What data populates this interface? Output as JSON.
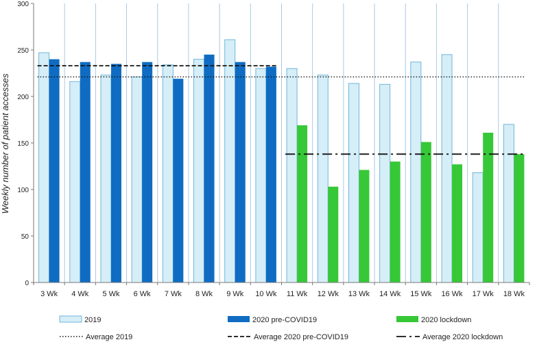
{
  "chart_data": {
    "type": "bar",
    "title": "",
    "xlabel": "",
    "ylabel": "Weekly number of patient accesses",
    "ylim": [
      0,
      300
    ],
    "yticks": [
      0,
      50,
      100,
      150,
      200,
      250,
      300
    ],
    "grid": "vertical lines between categories",
    "legend_position": "bottom",
    "categories": [
      "3 Wk",
      "4 Wk",
      "5 Wk",
      "6 Wk",
      "7 Wk",
      "8 Wk",
      "9 Wk",
      "10 Wk",
      "11 Wk",
      "12 Wk",
      "13 Wk",
      "14 Wk",
      "15 Wk",
      "16 Wk",
      "17 Wk",
      "18 Wk"
    ],
    "series": [
      {
        "name": "2019",
        "color": "#d6eef7",
        "stroke": "#6fb6d9",
        "values": [
          247,
          216,
          223,
          221,
          234,
          240,
          261,
          230,
          230,
          223,
          214,
          213,
          237,
          245,
          118,
          170
        ]
      },
      {
        "name": "2020 pre-COVID19",
        "color": "#0f6cc2",
        "values": [
          240,
          237,
          235,
          237,
          219,
          245,
          237,
          232,
          null,
          null,
          null,
          null,
          null,
          null,
          null,
          null
        ]
      },
      {
        "name": "2020 lockdown",
        "color": "#37c837",
        "values": [
          null,
          null,
          null,
          null,
          null,
          null,
          null,
          null,
          169,
          103,
          121,
          130,
          151,
          127,
          161,
          138
        ]
      }
    ],
    "reference_lines": [
      {
        "name": "Average 2019",
        "value": 221,
        "style": "dotted",
        "from": "3 Wk",
        "to": "18 Wk"
      },
      {
        "name": "Average 2020 pre-COVID19",
        "value": 233,
        "style": "dashed",
        "from": "3 Wk",
        "to": "10 Wk"
      },
      {
        "name": "Average 2020 lockdown",
        "value": 138,
        "style": "dash-dot",
        "from": "11 Wk",
        "to": "18 Wk"
      }
    ]
  }
}
